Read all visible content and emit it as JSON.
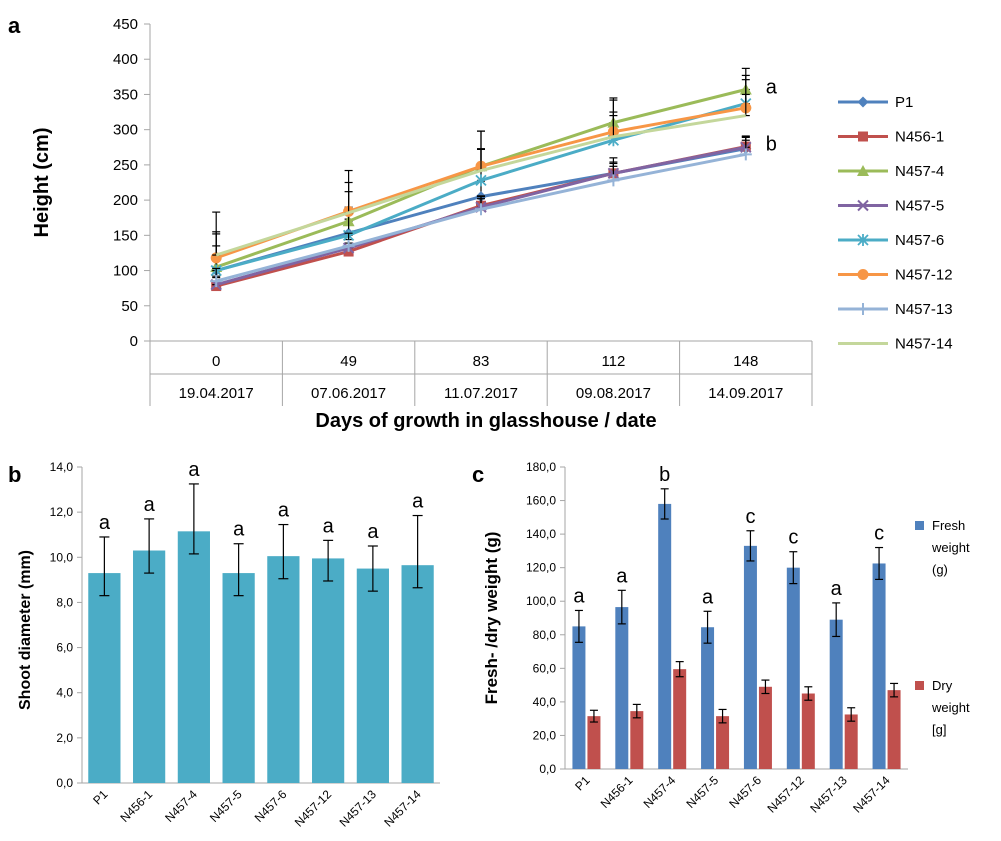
{
  "panels": {
    "a": "a",
    "b": "b",
    "c": "c"
  },
  "colors": {
    "axis": "#a6a6a6",
    "bar_b": "#4bacc6",
    "fresh": "#4f81bd",
    "dry": "#c0504d"
  },
  "chart_data": [
    {
      "id": "a",
      "type": "line",
      "xlabel": "Days of growth in glasshouse / date",
      "ylabel": "Height (cm)",
      "ylim": [
        0,
        450
      ],
      "yticks": [
        "0",
        "50",
        "100",
        "150",
        "200",
        "250",
        "300",
        "350",
        "400",
        "450"
      ],
      "categories": [
        "0",
        "49",
        "83",
        "112",
        "148"
      ],
      "dates": [
        "19.04.2017",
        "07.06.2017",
        "11.07.2017",
        "09.08.2017",
        "14.09.2017"
      ],
      "legend_position": "right",
      "grid": false,
      "series": [
        {
          "name": "P1",
          "color": "#4f81bd",
          "marker": "diamond",
          "values": [
            100,
            153,
            205,
            238,
            273
          ],
          "err": [
            20,
            20,
            22,
            22,
            18
          ]
        },
        {
          "name": "N456-1",
          "color": "#c0504d",
          "marker": "square",
          "values": [
            78,
            127,
            192,
            238,
            276
          ],
          "err": [
            12,
            12,
            14,
            16,
            14
          ]
        },
        {
          "name": "N457-4",
          "color": "#9bbb59",
          "marker": "triangle",
          "values": [
            105,
            170,
            248,
            310,
            357
          ],
          "err": [
            50,
            55,
            50,
            35,
            30
          ]
        },
        {
          "name": "N457-5",
          "color": "#8064a2",
          "marker": "x",
          "values": [
            80,
            132,
            190,
            238,
            275
          ],
          "err": [
            12,
            12,
            12,
            14,
            14
          ]
        },
        {
          "name": "N457-6",
          "color": "#4bacc6",
          "marker": "star",
          "values": [
            100,
            150,
            228,
            285,
            337
          ],
          "err": [
            35,
            40,
            45,
            40,
            40
          ]
        },
        {
          "name": "N457-12",
          "color": "#f79646",
          "marker": "circle",
          "values": [
            118,
            184,
            248,
            297,
            331
          ],
          "err": [
            65,
            58,
            50,
            45,
            40
          ]
        },
        {
          "name": "N457-13",
          "color": "#95b3d7",
          "marker": "plus",
          "values": [
            85,
            135,
            187,
            228,
            265
          ],
          "err": [
            18,
            18,
            18,
            20,
            20
          ]
        },
        {
          "name": "N457-14",
          "color": "#c4d79b",
          "marker": "none",
          "values": [
            122,
            182,
            242,
            290,
            320
          ],
          "err": [
            30,
            30,
            30,
            30,
            30
          ]
        }
      ],
      "annotations": [
        {
          "text": "a",
          "series": "N457-4",
          "index": 4
        },
        {
          "text": "b",
          "series": "N456-1",
          "index": 4
        }
      ]
    },
    {
      "id": "b",
      "type": "bar",
      "ylabel": "Shoot diameter (mm)",
      "ylim": [
        0,
        14
      ],
      "yticks": [
        "0,0",
        "2,0",
        "4,0",
        "6,0",
        "8,0",
        "10,0",
        "12,0",
        "14,0"
      ],
      "categories": [
        "P1",
        "N456-1",
        "N457-4",
        "N457-5",
        "N457-6",
        "N457-12",
        "N457-13",
        "N457-14"
      ],
      "values": [
        9.3,
        10.3,
        11.15,
        9.3,
        10.05,
        9.95,
        9.5,
        9.65
      ],
      "err_low": [
        1.0,
        1.0,
        1.0,
        1.0,
        1.0,
        1.0,
        1.0,
        1.0
      ],
      "err_high": [
        1.6,
        1.4,
        2.1,
        1.3,
        1.4,
        0.8,
        1.0,
        2.2
      ],
      "letters": [
        "a",
        "a",
        "a",
        "a",
        "a",
        "a",
        "a",
        "a"
      ],
      "grid": false
    },
    {
      "id": "c",
      "type": "bar",
      "ylabel": "Fresh- /dry weight (g)",
      "ylim": [
        0,
        180
      ],
      "yticks": [
        "0,0",
        "20,0",
        "40,0",
        "60,0",
        "80,0",
        "100,0",
        "120,0",
        "140,0",
        "160,0",
        "180,0"
      ],
      "categories": [
        "P1",
        "N456-1",
        "N457-4",
        "N457-5",
        "N457-6",
        "N457-12",
        "N457-13",
        "N457-14"
      ],
      "series": [
        {
          "name": "Fresh weight (g)",
          "legend_lines": [
            "Fresh",
            "weight",
            "(g)"
          ],
          "color": "#4f81bd",
          "values": [
            85,
            96.5,
            158,
            84.5,
            133,
            120,
            89,
            122.5
          ],
          "err": [
            9.5,
            10,
            9,
            9.5,
            9,
            9.5,
            10,
            9.5
          ]
        },
        {
          "name": "Dry weight [g]",
          "legend_lines": [
            "Dry",
            "weight",
            "[g]"
          ],
          "color": "#c0504d",
          "values": [
            31.5,
            34.5,
            59.5,
            31.5,
            49,
            45,
            32.5,
            47
          ],
          "err": [
            3.5,
            4,
            4.5,
            4,
            4,
            4,
            4,
            4
          ]
        }
      ],
      "letters": [
        "a",
        "a",
        "b",
        "a",
        "c",
        "c",
        "a",
        "c"
      ],
      "legend_position": "right",
      "grid": false
    }
  ]
}
